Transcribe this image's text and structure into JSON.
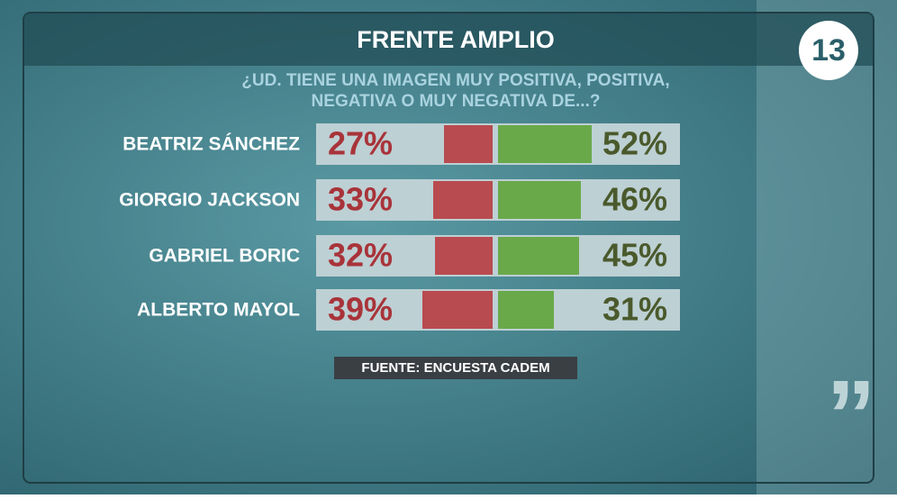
{
  "chart_data": {
    "type": "diverging_bar",
    "title": "FRENTE AMPLIO",
    "subtitle": [
      "¿UD. TIENE UNA IMAGEN MUY POSITIVA, POSITIVA,",
      "NEGATIVA O MUY NEGATIVA DE...?"
    ],
    "categories": [
      "BEATRIZ SÁNCHEZ",
      "GIORGIO JACKSON",
      "GABRIEL BORIC",
      "ALBERTO MAYOL"
    ],
    "series": [
      {
        "color": "#b84b4f",
        "label_color": "#a8343a",
        "values": [
          27,
          33,
          32,
          39
        ],
        "value_labels": [
          "27%",
          "33%",
          "32%",
          "39%"
        ]
      },
      {
        "color": "#6aa94a",
        "label_color": "#4b5a2c",
        "values": [
          52,
          46,
          45,
          31
        ],
        "value_labels": [
          "52%",
          "46%",
          "45%",
          "31%"
        ]
      }
    ],
    "source": "FUENTE: ENCUESTA CADEM"
  },
  "logo": "13"
}
